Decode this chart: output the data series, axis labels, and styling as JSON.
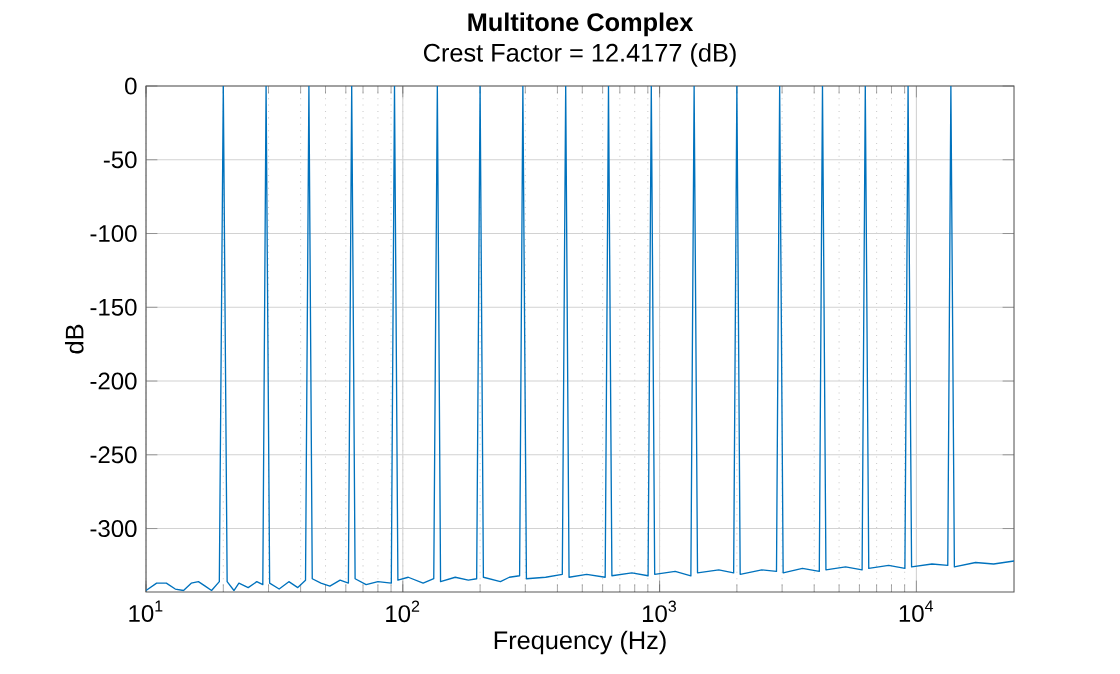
{
  "chart_data": {
    "type": "line",
    "title": "Multitone Complex",
    "subtitle": "Crest Factor = 12.4177 (dB)",
    "xlabel": "Frequency (Hz)",
    "ylabel": "dB",
    "log": "x",
    "grid": true,
    "xlim": [
      10,
      24000
    ],
    "ylim": [
      -343,
      0
    ],
    "xticks": [
      {
        "value": 10,
        "label": "10$^{1}$"
      },
      {
        "value": 100,
        "label": "10$^{2}$"
      },
      {
        "value": 1000,
        "label": "10$^{3}$"
      },
      {
        "value": 10000,
        "label": "10$^{4}$"
      }
    ],
    "yticks": [
      -300,
      -250,
      -200,
      -150,
      -100,
      -50,
      0
    ],
    "series": [
      {
        "color": "#0072bd",
        "x": [
          10,
          11,
          12,
          13,
          14,
          15,
          16,
          17,
          18,
          19.3,
          20,
          20.7,
          22,
          23,
          25,
          27,
          28.5,
          29.35,
          30.3,
          33,
          36,
          39,
          41.8,
          43.09,
          44.4,
          48,
          52,
          57,
          61.4,
          63.25,
          65.2,
          72,
          80,
          90.2,
          92.83,
          95.7,
          105,
          120,
          132,
          136.3,
          140.3,
          160,
          180,
          194,
          200,
          206,
          240,
          260,
          285,
          293.5,
          303,
          360,
          418,
          430.9,
          444,
          520,
          614,
          632.5,
          652,
          780,
          902,
          928.3,
          957,
          1150,
          1324,
          1363,
          1405,
          1700,
          1943,
          2000,
          2060,
          2500,
          2853,
          2935,
          3028,
          3600,
          4188,
          4309,
          4444,
          5300,
          6147,
          6325,
          6525,
          7800,
          9023,
          9283,
          9579,
          11500,
          13250,
          13626,
          14060,
          17000,
          20000,
          24000
        ],
        "values": [
          -342,
          -337,
          -337,
          -341,
          -342,
          -337,
          -336,
          -339,
          -342,
          -336,
          0,
          -336,
          -342,
          -337,
          -340,
          -336,
          -338,
          0,
          -337,
          -341,
          -336,
          -340,
          -335,
          0,
          -334,
          -337,
          -339,
          -335,
          -337,
          0,
          -334,
          -338,
          -336,
          -337,
          0,
          -335,
          -333,
          -337,
          -334,
          0,
          -336,
          -333,
          -335,
          -334,
          0,
          -333,
          -336,
          -333,
          -332,
          0,
          -334,
          -333,
          -331,
          0,
          -333,
          -331,
          -333,
          0,
          -332,
          -330,
          -332,
          0,
          -331,
          -329,
          -332,
          0,
          -330,
          -328,
          -330,
          0,
          -331,
          -328,
          -329,
          0,
          -330,
          -327,
          -329,
          0,
          -328,
          -326,
          -328,
          0,
          -327,
          -325,
          -327,
          0,
          -326,
          -324,
          -325,
          0,
          -326,
          -323,
          -324,
          -322
        ]
      }
    ]
  }
}
